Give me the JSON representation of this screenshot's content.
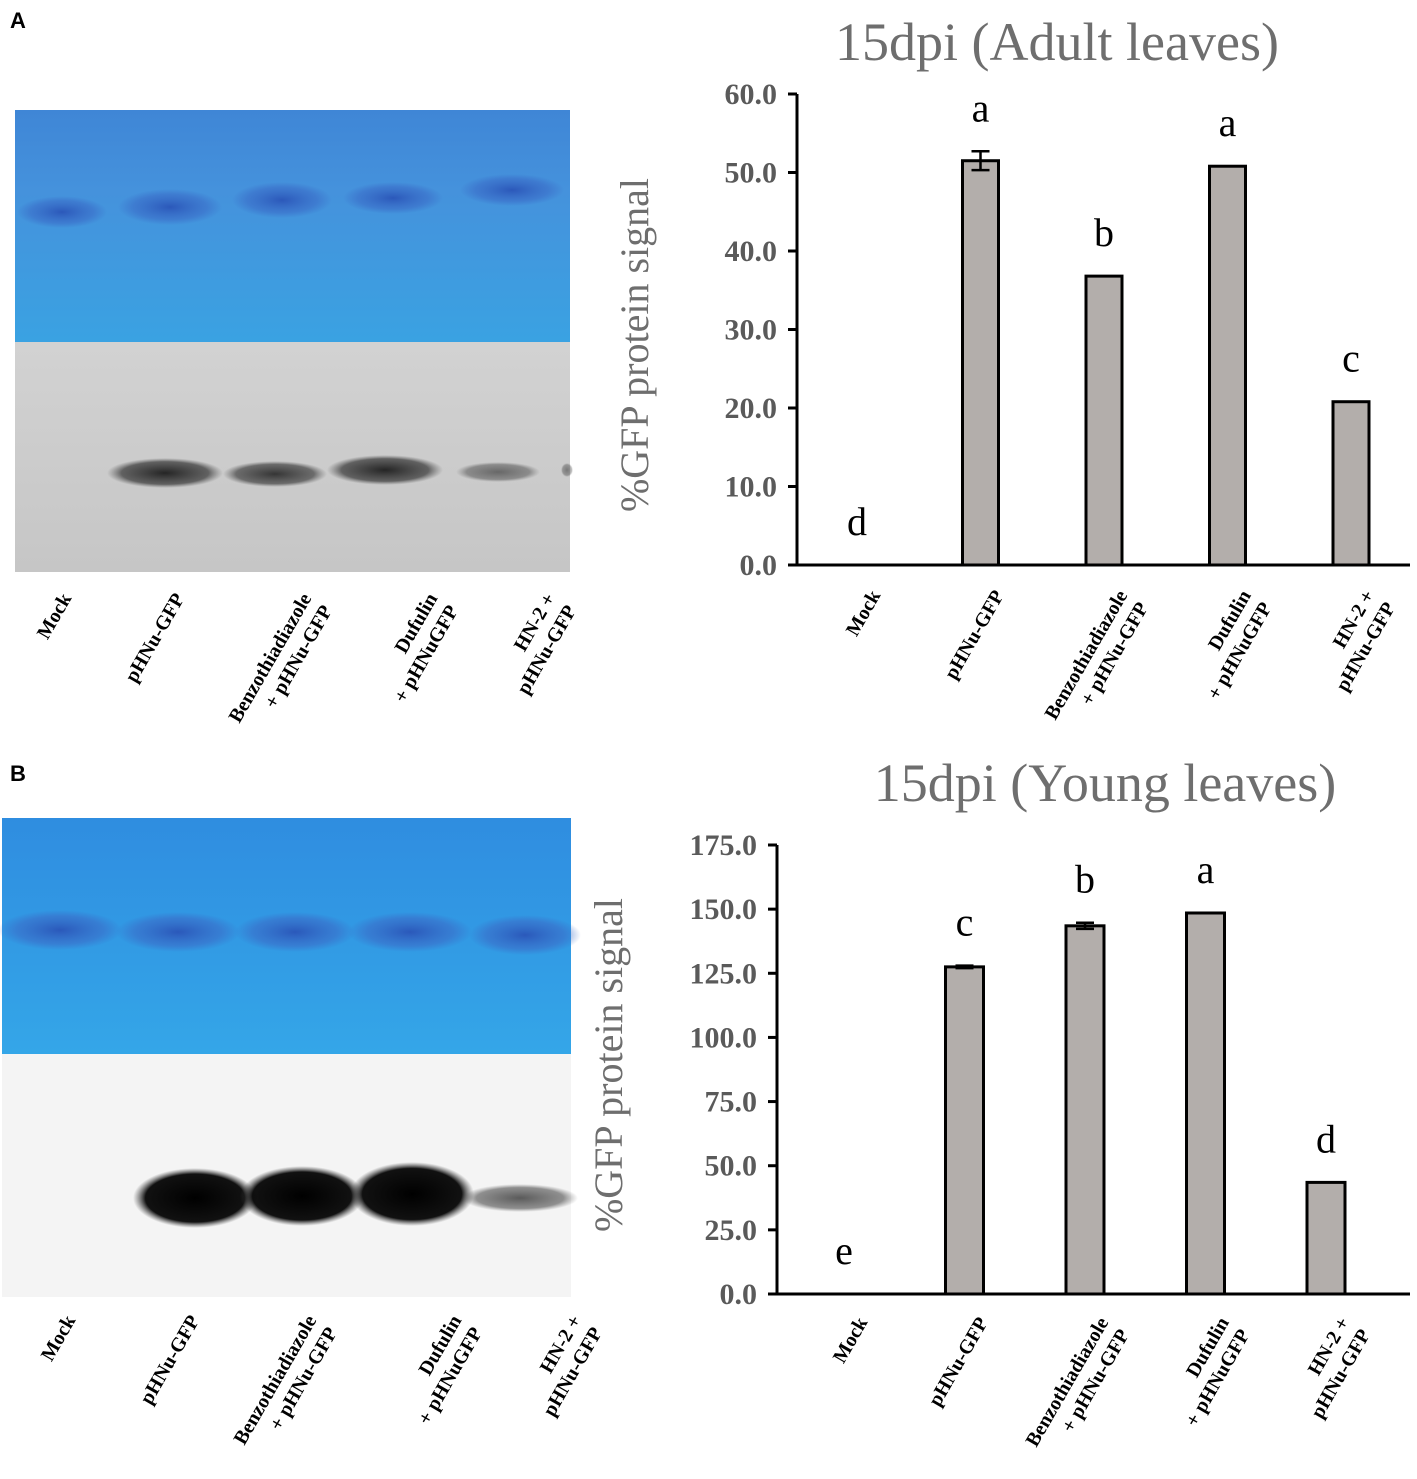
{
  "panels": [
    {
      "letter": "A",
      "lane_labels": [
        [
          "Mock"
        ],
        [
          "pHNu-GFP"
        ],
        [
          "Benzothiadiazole",
          "+ pHNu-GFP"
        ],
        [
          "Dufulin",
          "+ pHNuGFP"
        ],
        [
          "HN-2 +",
          "pHNu-GFP"
        ]
      ]
    },
    {
      "letter": "B",
      "lane_labels": [
        [
          "Mock"
        ],
        [
          "pHNu-GFP"
        ],
        [
          "Benzothiadiazole",
          "+ pHNu-GFP"
        ],
        [
          "Dufulin",
          "+ pHNuGFP"
        ],
        [
          "HN-2 +",
          "pHNu-GFP"
        ]
      ]
    }
  ],
  "chart_data": [
    {
      "type": "bar",
      "title": "15dpi (Adult leaves)",
      "ylabel": "%GFP protein signal",
      "xlabel": "",
      "categories": [
        [
          "Mock"
        ],
        [
          "pHNu-GFP"
        ],
        [
          "Benzothiadiazole",
          "+ pHNu-GFP"
        ],
        [
          "Dufulin",
          "+ pHNuGFP"
        ],
        [
          "HN-2 +",
          "pHNu-GFP"
        ]
      ],
      "values": [
        0.0,
        51.5,
        36.8,
        50.8,
        20.8
      ],
      "errors": [
        0.0,
        1.2,
        0.0,
        0.0,
        0.0
      ],
      "significance": [
        "d",
        "a",
        "b",
        "a",
        "c"
      ],
      "ylim": [
        0,
        60
      ],
      "yticks": [
        "0.0",
        "10.0",
        "20.0",
        "30.0",
        "40.0",
        "50.0",
        "60.0"
      ],
      "ytick_values": [
        0,
        10,
        20,
        30,
        40,
        50,
        60
      ],
      "grid": false,
      "legend": "none",
      "bar_color": "#b3aeab"
    },
    {
      "type": "bar",
      "title": "15dpi (Young leaves)",
      "ylabel": "%GFP protein signal",
      "xlabel": "",
      "categories": [
        [
          "Mock"
        ],
        [
          "pHNu-GFP"
        ],
        [
          "Benzothiadiazole",
          "+ pHNu-GFP"
        ],
        [
          "Dufulin",
          "+ pHNuGFP"
        ],
        [
          "HN-2 +",
          "pHNu-GFP"
        ]
      ],
      "values": [
        0.0,
        127.5,
        143.5,
        148.5,
        43.5
      ],
      "errors": [
        0.0,
        0.5,
        1.2,
        0.0,
        0.0
      ],
      "significance": [
        "e",
        "c",
        "b",
        "a",
        "d"
      ],
      "ylim": [
        0,
        175
      ],
      "yticks": [
        "0.0",
        "25.0",
        "50.0",
        "75.0",
        "100.0",
        "125.0",
        "150.0",
        "175.0"
      ],
      "ytick_values": [
        0,
        25,
        50,
        75,
        100,
        125,
        150,
        175
      ],
      "grid": false,
      "legend": "none",
      "bar_color": "#b3aeab"
    }
  ]
}
